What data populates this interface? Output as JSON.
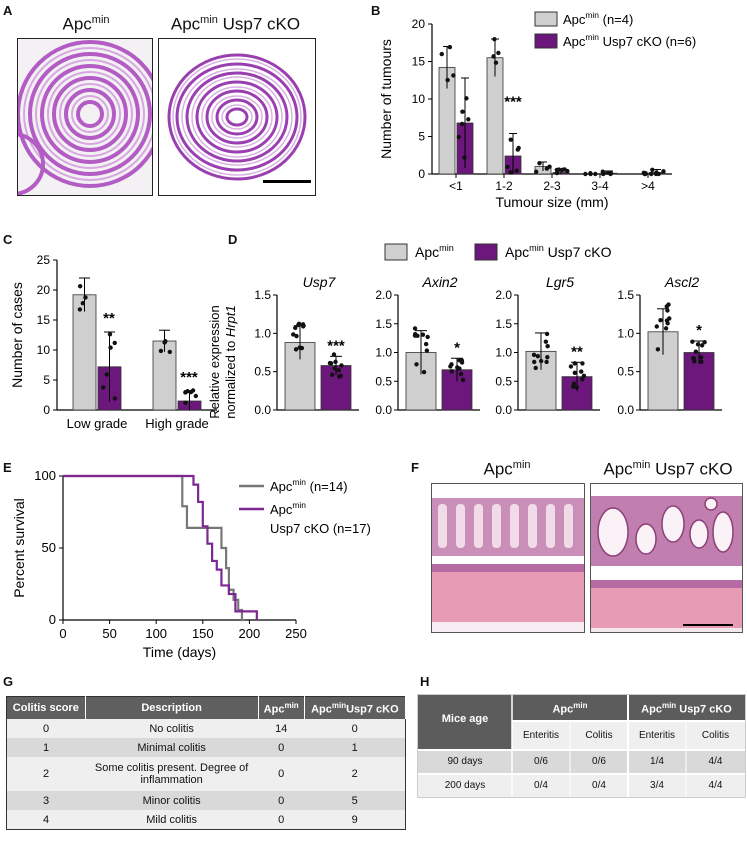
{
  "panels": {
    "a": "A",
    "b": "B",
    "c": "C",
    "d": "D",
    "e": "E",
    "f": "F",
    "g": "G",
    "h": "H"
  },
  "histology_a": {
    "left_title": "Apc",
    "left_sup": "min",
    "right_title_a": "Apc",
    "right_sup": "min",
    "right_title_b": " Usp7 cKO"
  },
  "histology_f": {
    "left_title": "Apc",
    "left_sup": "min",
    "right_title_a": "Apc",
    "right_sup": "min",
    "right_title_b": " Usp7 cKO"
  },
  "colors": {
    "ctrl": "#cfcfcf",
    "ko": "#6b177b",
    "ctrl_line": "#777777",
    "ko_line": "#7d2792"
  },
  "chart_data": [
    {
      "id": "B",
      "type": "bar",
      "ylabel": "Number of tumours",
      "xlabel": "Tumour size (mm)",
      "categories": [
        "<1",
        "1-2",
        "2-3",
        "3-4",
        ">4"
      ],
      "ylim": [
        0,
        20
      ],
      "yticks": [
        0,
        5,
        10,
        15,
        20
      ],
      "series": [
        {
          "name": "Apc",
          "sup": "min",
          "suffix": " (n=4)",
          "values": [
            14.2,
            15.5,
            1.0,
            0,
            0
          ],
          "err": [
            2.8,
            2.5,
            0.6,
            0,
            0
          ]
        },
        {
          "name": "Apc",
          "sup": "min",
          "suffix": " Usp7 cKO (n=6)",
          "values": [
            6.8,
            2.4,
            0.2,
            0.1,
            0.2
          ],
          "err": [
            6.0,
            3.0,
            0.4,
            0.3,
            0.4
          ]
        }
      ],
      "annotations": [
        {
          "category": "1-2",
          "text": "***"
        }
      ]
    },
    {
      "id": "C",
      "type": "bar",
      "ylabel": "Number of cases",
      "categories": [
        "Low grade",
        "High grade"
      ],
      "ylim": [
        0,
        25
      ],
      "yticks": [
        0,
        5,
        10,
        15,
        20,
        25
      ],
      "series": [
        {
          "name": "Apc min",
          "values": [
            19.2,
            11.5
          ],
          "err": [
            2.8,
            1.8
          ]
        },
        {
          "name": "Apc min Usp7 cKO",
          "values": [
            7.2,
            1.5
          ],
          "err": [
            5.8,
            1.7
          ]
        }
      ],
      "annotations": [
        {
          "category": "Low grade",
          "text": "**"
        },
        {
          "category": "High grade",
          "text": "***"
        }
      ]
    },
    {
      "id": "D",
      "type": "bar",
      "ylabel": "Relative expression normalized to",
      "ylabel_italic": "Hrpt1",
      "legend": [
        {
          "name": "Apc",
          "sup": "min"
        },
        {
          "name": "Apc",
          "sup": "min",
          "suffix": " Usp7 cKO"
        }
      ],
      "subplots": [
        {
          "gene": "Usp7",
          "ylim": [
            0,
            1.5
          ],
          "yticks": [
            "0.0",
            "0.5",
            "1.0",
            "1.5"
          ],
          "values": [
            0.88,
            0.58
          ],
          "err": [
            0.22,
            0.12
          ],
          "sig": "***"
        },
        {
          "gene": "Axin2",
          "ylim": [
            0,
            2.0
          ],
          "yticks": [
            "0.0",
            "0.5",
            "1.0",
            "1.5",
            "2.0"
          ],
          "values": [
            1.0,
            0.7
          ],
          "err": [
            0.38,
            0.2
          ],
          "sig": "*"
        },
        {
          "gene": "Lgr5",
          "ylim": [
            0,
            2.0
          ],
          "yticks": [
            "0.0",
            "0.5",
            "1.0",
            "1.5",
            "2.0"
          ],
          "values": [
            1.02,
            0.58
          ],
          "err": [
            0.32,
            0.25
          ],
          "sig": "**"
        },
        {
          "gene": "Ascl2",
          "ylim": [
            0,
            1.5
          ],
          "yticks": [
            "0.0",
            "0.5",
            "1.0",
            "1.5"
          ],
          "values": [
            1.02,
            0.75
          ],
          "err": [
            0.3,
            0.15
          ],
          "sig": "*"
        }
      ]
    },
    {
      "id": "E",
      "type": "line",
      "xlabel": "Time (days)",
      "ylabel": "Percent survival",
      "xlim": [
        0,
        250
      ],
      "ylim": [
        0,
        100
      ],
      "xticks": [
        0,
        50,
        100,
        150,
        200,
        250
      ],
      "yticks": [
        0,
        50,
        100
      ],
      "series": [
        {
          "name": "Apc",
          "sup": "min",
          "suffix": " (n=14)",
          "steps": [
            [
              0,
              100
            ],
            [
              128,
              100
            ],
            [
              128,
              79
            ],
            [
              133,
              79
            ],
            [
              133,
              64
            ],
            [
              170,
              64
            ],
            [
              170,
              50
            ],
            [
              175,
              50
            ],
            [
              175,
              36
            ],
            [
              178,
              36
            ],
            [
              178,
              21
            ],
            [
              183,
              21
            ],
            [
              183,
              14
            ],
            [
              188,
              14
            ],
            [
              188,
              7
            ],
            [
              192,
              7
            ],
            [
              192,
              0
            ],
            [
              195,
              0
            ]
          ]
        },
        {
          "name": "Apc",
          "sup": "min",
          "line2": "Usp7 cKO (n=17)",
          "steps": [
            [
              0,
              100
            ],
            [
              140,
              100
            ],
            [
              140,
              94
            ],
            [
              145,
              94
            ],
            [
              145,
              82
            ],
            [
              150,
              82
            ],
            [
              150,
              65
            ],
            [
              155,
              65
            ],
            [
              155,
              53
            ],
            [
              160,
              53
            ],
            [
              160,
              41
            ],
            [
              165,
              41
            ],
            [
              165,
              35
            ],
            [
              170,
              35
            ],
            [
              170,
              24
            ],
            [
              178,
              24
            ],
            [
              178,
              18
            ],
            [
              185,
              18
            ],
            [
              185,
              6
            ],
            [
              208,
              6
            ],
            [
              208,
              0
            ]
          ]
        }
      ]
    }
  ],
  "table_g": {
    "headers": [
      "Colitis score",
      "Description",
      "Apc",
      "Apc",
      "Usp7 cKO"
    ],
    "header_sup": "min",
    "rows": [
      [
        "0",
        "No colitis",
        "14",
        "0"
      ],
      [
        "1",
        "Minimal colitis",
        "0",
        "1"
      ],
      [
        "2",
        "Some colitis present. Degree of inflammation",
        "0",
        "2"
      ],
      [
        "3",
        "Minor colitis",
        "0",
        "5"
      ],
      [
        "4",
        "Mild colitis",
        "0",
        "9"
      ]
    ]
  },
  "table_h": {
    "age_header": "Mice age",
    "group1": "Apc",
    "group1_sup": "min",
    "group2a": "Apc",
    "group2_sup": "min",
    "group2b": " Usp7 cKO",
    "sub": [
      "Enteritis",
      "Colitis",
      "Enteritis",
      "Colitis"
    ],
    "rows": [
      [
        "90 days",
        "0/6",
        "0/6",
        "1/4",
        "4/4"
      ],
      [
        "200 days",
        "0/4",
        "0/4",
        "3/4",
        "4/4"
      ]
    ]
  }
}
